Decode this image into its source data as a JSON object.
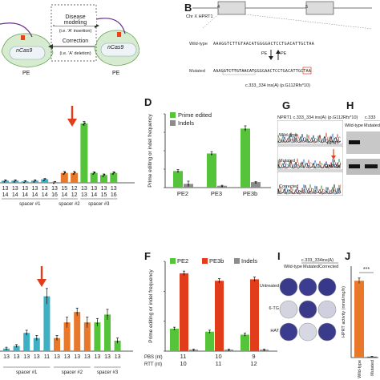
{
  "panel_a": {
    "disease_modeling": "Disease modeling",
    "disease_modeling_note": "(i.e. 'A' insertion)",
    "correction": "Correction",
    "correction_note": "(i.e. 'A' deletion)",
    "enzyme_left": "nCas9",
    "enzyme_right": "nCas9",
    "pe_left": "PE",
    "pe_right": "PE"
  },
  "panel_b": {
    "label": "B",
    "locus": "Chr X HPRT1",
    "exon_left": "4",
    "exon_right": "5",
    "wildtype_label": "Wild-type",
    "mutated_label": "Mutated",
    "wt_seq": "AAAGGTCTTGTAACATGGGGACTCCTGACATTGCTAA",
    "mut_seq": "AAAGGTCTTGTAACATGGGGAACTCCTGACATTGCTAA",
    "pe_arrow_left": "PE",
    "pe_arrow_right": "PE",
    "mutation": "c.333_334 ins(A) (p.G112Rfs*10)"
  },
  "panel_c_x": {
    "row1": [
      "13",
      "13",
      "13",
      "13",
      "13",
      "13",
      "15",
      "12",
      "13",
      "13",
      "13",
      "13"
    ],
    "row2": [
      "14",
      "14",
      "14",
      "14",
      "14",
      "16",
      "14",
      "12",
      "13",
      "14",
      "15",
      "16"
    ],
    "groups": [
      "spacer #1",
      "spacer #2",
      "spacer #3"
    ]
  },
  "panel_d": {
    "label": "D",
    "ylabel": "Prime editing or indel frequency",
    "legend": [
      "Prime edited",
      "Indels"
    ],
    "categories": [
      "PE2",
      "PE3",
      "PE3b"
    ]
  },
  "panel_g": {
    "label": "G",
    "title": "NPRT1 c.333_334 ins(A) (p.G112Rfs*10)",
    "rows": [
      "Wild-type",
      "Mutated",
      "Corrected"
    ]
  },
  "panel_h": {
    "label": "H",
    "col_header": "c.333",
    "lanes": [
      "Wild-type",
      "Mutated"
    ],
    "rows": [
      "HPRT",
      "GAPDH"
    ]
  },
  "panel_e_x": {
    "groups": [
      "spacer #1",
      "spacer #2",
      "spacer #3"
    ]
  },
  "panel_f": {
    "label": "F",
    "ylabel": "Prime editing or indel frequency",
    "legend": [
      "PE2",
      "PE3b",
      "Indels"
    ],
    "pbs_label": "PBS (nt)",
    "rtt_label": "RTT (nt)",
    "pbs": [
      "11",
      "10",
      "9"
    ],
    "rtt": [
      "10",
      "11",
      "12"
    ]
  },
  "panel_i": {
    "label": "I",
    "header": "c.333_334ins(A)",
    "cols": [
      "Wild-type",
      "Mutated",
      "Corrected"
    ],
    "rows": [
      "Untreated",
      "6-TG",
      "HAT"
    ]
  },
  "panel_j": {
    "label": "J",
    "ylabel": "HPRT activity (nmol/mg/h)",
    "significance": "***",
    "xlabels": [
      "Wild-type",
      "Mutated"
    ]
  },
  "colors": {
    "teal": "#3fb0c4",
    "orange": "#e8782a",
    "green": "#55c43b",
    "grey": "#8c8c8c",
    "red": "#e23d1a",
    "dark": "#2a2a2a"
  },
  "chart_data": [
    {
      "type": "bar",
      "panel": "C",
      "categories": [
        "13/14",
        "13/14",
        "13/14",
        "13/14",
        "13/14",
        "13/16",
        "15/14",
        "12/12",
        "13/13",
        "13/14",
        "13/15",
        "13/16"
      ],
      "values": [
        3,
        3,
        2,
        3,
        5,
        1,
        14,
        14,
        84,
        14,
        11,
        14
      ],
      "errors": [
        1,
        1,
        1,
        1,
        1,
        0.5,
        2,
        2,
        3,
        1.5,
        1.5,
        1.5
      ],
      "series_colors": [
        "#3fb0c4",
        "#3fb0c4",
        "#3fb0c4",
        "#3fb0c4",
        "#3fb0c4",
        "#3fb0c4",
        "#e8782a",
        "#e8782a",
        "#55c43b",
        "#55c43b",
        "#55c43b",
        "#55c43b"
      ],
      "ylim": [
        0,
        100
      ]
    },
    {
      "type": "bar",
      "panel": "D",
      "categories": [
        "PE2",
        "PE3",
        "PE3b"
      ],
      "series": [
        {
          "name": "Prime edited",
          "values": [
            18,
            37,
            64
          ],
          "errors": [
            1.5,
            2,
            3
          ]
        },
        {
          "name": "Indels",
          "values": [
            4,
            2,
            6
          ],
          "errors": [
            3,
            0.5,
            0.5
          ]
        }
      ],
      "ylim": [
        0,
        80
      ]
    },
    {
      "type": "bar",
      "panel": "E",
      "categories": [
        "13",
        "13",
        "13",
        "13",
        "11",
        "13",
        "13",
        "13",
        "13",
        "13",
        "13",
        "13"
      ],
      "values": [
        1,
        2,
        7,
        5,
        21,
        5,
        11,
        15,
        11,
        11,
        14,
        4
      ],
      "errors": [
        0.5,
        0.5,
        1,
        1,
        3,
        1,
        2,
        1.5,
        2,
        1.5,
        2,
        1
      ],
      "series_colors": [
        "#3fb0c4",
        "#3fb0c4",
        "#3fb0c4",
        "#3fb0c4",
        "#3fb0c4",
        "#e8782a",
        "#e8782a",
        "#e8782a",
        "#e8782a",
        "#55c43b",
        "#55c43b",
        "#55c43b"
      ],
      "ylim": [
        0,
        35
      ]
    },
    {
      "type": "bar",
      "panel": "F",
      "categories": [
        "11/10",
        "10/11",
        "9/12"
      ],
      "series": [
        {
          "name": "PE2",
          "values": [
            15,
            13,
            11
          ],
          "errors": [
            1,
            1,
            1
          ]
        },
        {
          "name": "PE3b",
          "values": [
            52,
            47,
            48
          ],
          "errors": [
            1.5,
            1.5,
            1.5
          ]
        },
        {
          "name": "Indels",
          "values": [
            1,
            1,
            1
          ],
          "errors": [
            0.3,
            0.3,
            0.3
          ]
        }
      ],
      "ylim": [
        0,
        60
      ]
    },
    {
      "type": "bar",
      "panel": "J",
      "categories": [
        "Wild-type",
        "Mutated"
      ],
      "values": [
        42,
        0.5
      ],
      "errors": [
        1.5,
        0.2
      ],
      "ylim": [
        0,
        50
      ]
    }
  ]
}
